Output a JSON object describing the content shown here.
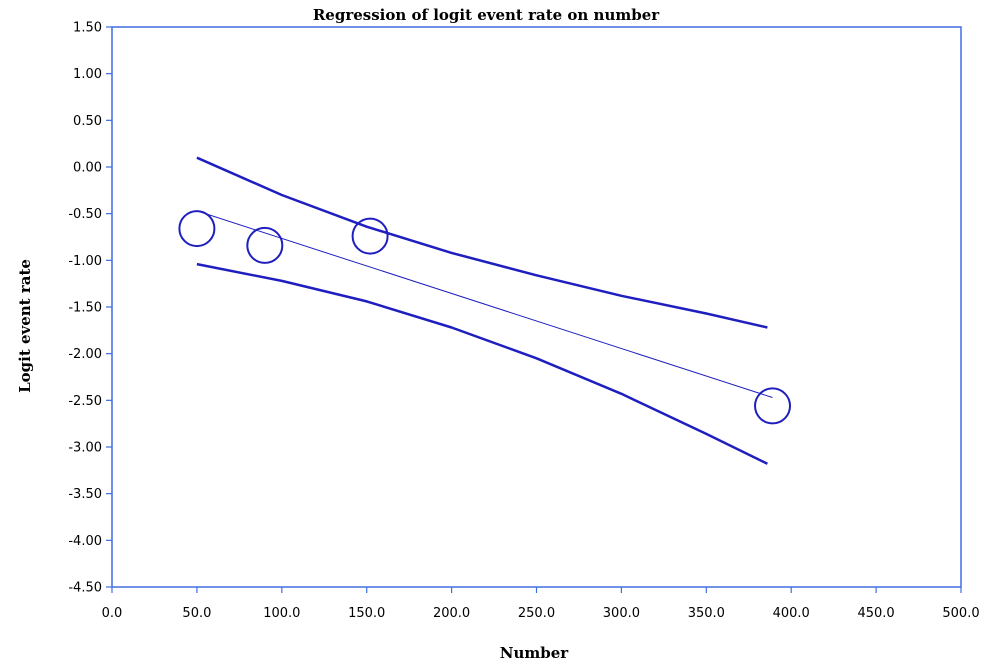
{
  "chart_data": {
    "type": "scatter",
    "title": "Regression of logit event rate on number",
    "xlabel": "Number",
    "ylabel": "Logit event rate",
    "xlim": [
      0,
      500
    ],
    "ylim": [
      -4.5,
      1.5
    ],
    "x_ticks": [
      "0.0",
      "50.0",
      "100.0",
      "150.0",
      "200.0",
      "250.0",
      "300.0",
      "350.0",
      "400.0",
      "450.0",
      "500.0"
    ],
    "y_ticks": [
      "1.50",
      "1.00",
      "0.50",
      "0.00",
      "-0.50",
      "-1.00",
      "-1.50",
      "-2.00",
      "-2.50",
      "-3.00",
      "-3.50",
      "-4.00",
      "-4.50"
    ],
    "color": "#1f1fbf",
    "frame_color": "#3d6fe0",
    "points": [
      {
        "x": 50,
        "y": -0.66
      },
      {
        "x": 90,
        "y": -0.84
      },
      {
        "x": 152,
        "y": -0.74
      },
      {
        "x": 389,
        "y": -2.56
      }
    ],
    "regression_line": [
      {
        "x": 50,
        "y": -0.47
      },
      {
        "x": 389,
        "y": -2.47
      }
    ],
    "ci_upper": [
      {
        "x": 50,
        "y": 0.1
      },
      {
        "x": 100,
        "y": -0.3
      },
      {
        "x": 150,
        "y": -0.64
      },
      {
        "x": 200,
        "y": -0.92
      },
      {
        "x": 250,
        "y": -1.16
      },
      {
        "x": 300,
        "y": -1.38
      },
      {
        "x": 350,
        "y": -1.57
      },
      {
        "x": 386,
        "y": -1.72
      }
    ],
    "ci_lower": [
      {
        "x": 50,
        "y": -1.04
      },
      {
        "x": 100,
        "y": -1.22
      },
      {
        "x": 150,
        "y": -1.44
      },
      {
        "x": 200,
        "y": -1.72
      },
      {
        "x": 250,
        "y": -2.05
      },
      {
        "x": 300,
        "y": -2.43
      },
      {
        "x": 350,
        "y": -2.86
      },
      {
        "x": 386,
        "y": -3.18
      }
    ]
  }
}
